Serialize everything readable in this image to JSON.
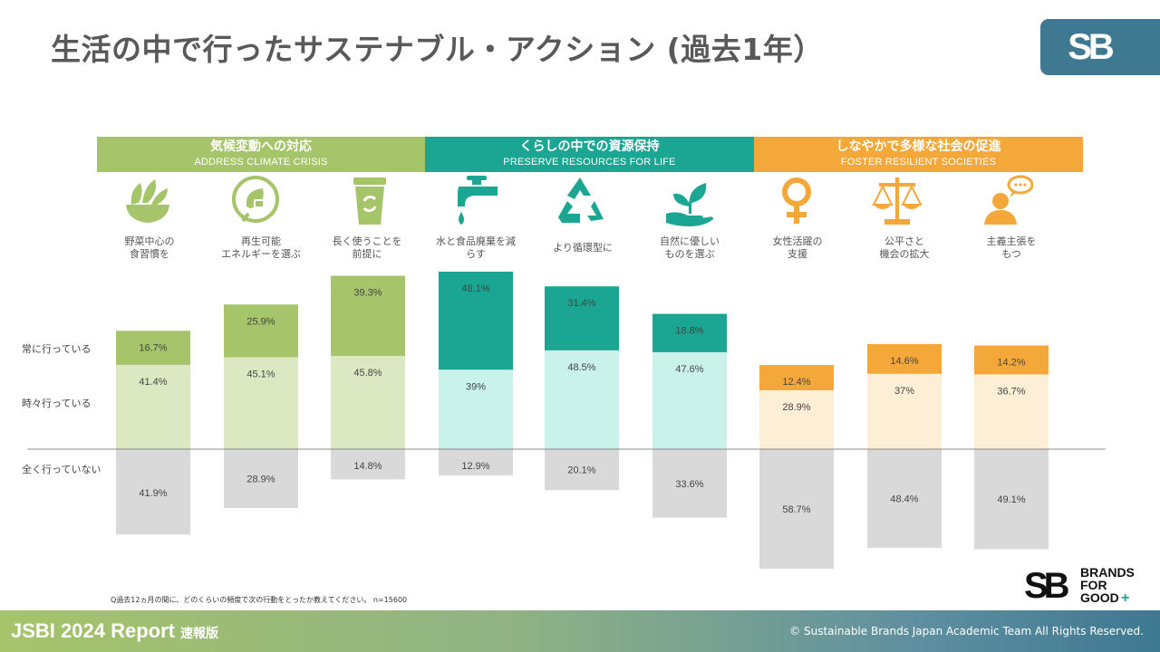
{
  "title": "生活の中で行ったサステナブル・アクション (過去1年）",
  "logo_text": "SB",
  "categories": [
    {
      "jp": "気候変動への対応",
      "en": "ADDRESS CLIMATE CRISIS",
      "color": "#a6c46a"
    },
    {
      "jp": "くらしの中での資源保持",
      "en": "PRESERVE RESOURCES FOR LIFE",
      "color": "#1aa692"
    },
    {
      "jp": "しなやかで多様な社会の促進",
      "en": "FOSTER RESILIENT SOCIETIES",
      "color": "#f5a83a"
    }
  ],
  "row_labels": {
    "always": "常に行っている",
    "sometimes": "時々行っている",
    "never": "全く行っていない"
  },
  "items": [
    {
      "line1": "野菜中心の",
      "line2": "食習慣を",
      "icon": "salad-bowl-icon"
    },
    {
      "line1": "再生可能",
      "line2": "エネルギーを選ぶ",
      "icon": "renewable-plug-icon"
    },
    {
      "line1": "長く使うことを",
      "line2": "前提に",
      "icon": "reusable-cup-icon"
    },
    {
      "line1": "水と食品廃棄を減",
      "line2": "らす",
      "icon": "water-tap-icon"
    },
    {
      "line1": "より循環型に",
      "line2": "",
      "icon": "recycle-icon"
    },
    {
      "line1": "自然に優しい",
      "line2": "ものを選ぶ",
      "icon": "plant-hand-icon"
    },
    {
      "line1": "女性活躍の",
      "line2": "支援",
      "icon": "female-symbol-icon"
    },
    {
      "line1": "公平さと",
      "line2": "機会の拡大",
      "icon": "balance-scale-icon"
    },
    {
      "line1": "主義主張を",
      "line2": "もつ",
      "icon": "speaking-person-icon"
    }
  ],
  "chart_data": {
    "type": "bar",
    "categories": [
      "野菜中心の食習慣を",
      "再生可能エネルギーを選ぶ",
      "長く使うことを前提に",
      "水と食品廃棄を減らす",
      "より循環型に",
      "自然に優しいものを選ぶ",
      "女性活躍の支援",
      "公平さと機会の拡大",
      "主義主張をもつ"
    ],
    "series": [
      {
        "name": "常に行っている",
        "values": [
          16.7,
          25.9,
          39.3,
          48.1,
          31.4,
          18.8,
          12.4,
          14.6,
          14.2
        ],
        "labels": [
          "16.7%",
          "25.9%",
          "39.3%",
          "48.1%",
          "31.4%",
          "18.8%",
          "12.4%",
          "14.6%",
          "14.2%"
        ]
      },
      {
        "name": "時々行っている",
        "values": [
          41.4,
          45.1,
          45.8,
          39,
          48.5,
          47.6,
          28.9,
          37,
          36.7
        ],
        "labels": [
          "41.4%",
          "45.1%",
          "45.8%",
          "39%",
          "48.5%",
          "47.6%",
          "28.9%",
          "37%",
          "36.7%"
        ]
      },
      {
        "name": "全く行っていない",
        "values": [
          41.9,
          28.9,
          14.8,
          12.9,
          20.1,
          33.6,
          58.7,
          48.4,
          49.1
        ],
        "labels": [
          "41.9%",
          "28.9%",
          "14.8%",
          "12.9%",
          "20.1%",
          "33.6%",
          "58.7%",
          "48.4%",
          "49.1%"
        ]
      }
    ],
    "group_colors": [
      {
        "always": "#a6c46a",
        "sometimes": "#dce8c2",
        "never": "#d9d9d9"
      },
      {
        "always": "#1aa692",
        "sometimes": "#c8f2ea",
        "never": "#d9d9d9"
      },
      {
        "always": "#f5a83a",
        "sometimes": "#fdeed6",
        "never": "#d9d9d9"
      }
    ],
    "stacking": "always and sometimes above baseline, never below baseline",
    "grid": false
  },
  "note": "Q過去12ヵ月の間に、どのくらいの頻度で次の行動をとったか教えてください。 n=15600",
  "brand_logo": {
    "initials": "SB",
    "line1": "BRANDS",
    "line2": "FOR",
    "line3": "GOOD"
  },
  "footer": {
    "title": "JSBI 2024 Report",
    "subtitle": "速報版",
    "copyright": "© Sustainable Brands Japan Academic Team  All Rights Reserved."
  }
}
